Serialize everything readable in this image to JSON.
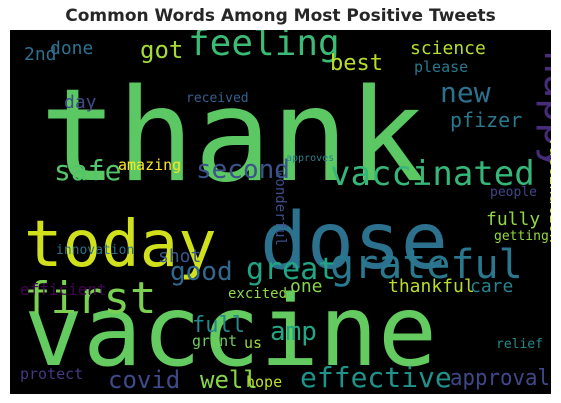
{
  "title": "Common Words Among Most Positive Tweets",
  "words": [
    {
      "text": "thank",
      "color": "#5cc863"
    },
    {
      "text": "vaccine",
      "color": "#63cb5f"
    },
    {
      "text": "dose",
      "color": "#2c728e"
    },
    {
      "text": "today",
      "color": "#d0e11c"
    },
    {
      "text": "first",
      "color": "#7ad151"
    },
    {
      "text": "grateful",
      "color": "#2a788e"
    },
    {
      "text": "feeling",
      "color": "#3bbb75"
    },
    {
      "text": "vaccinated",
      "color": "#35b779"
    },
    {
      "text": "happy",
      "color": "#472c7a"
    },
    {
      "text": "great",
      "color": "#21a585"
    },
    {
      "text": "effective",
      "color": "#20928c"
    },
    {
      "text": "second",
      "color": "#3b528b"
    },
    {
      "text": "safe",
      "color": "#52c569"
    },
    {
      "text": "good",
      "color": "#31688e"
    },
    {
      "text": "covid",
      "color": "#3e4a89"
    },
    {
      "text": "approval",
      "color": "#3f4889"
    },
    {
      "text": "well",
      "color": "#86d549"
    },
    {
      "text": "got",
      "color": "#a5db36"
    },
    {
      "text": "new",
      "color": "#2c728e"
    },
    {
      "text": "thankful",
      "color": "#b8de29"
    },
    {
      "text": "amp",
      "color": "#22a884"
    },
    {
      "text": "full",
      "color": "#24868e"
    },
    {
      "text": "vaccination",
      "color": "#bddf26"
    },
    {
      "text": "science",
      "color": "#b5de2b"
    },
    {
      "text": "best",
      "color": "#b8de29"
    },
    {
      "text": "pfizer",
      "color": "#2a788e"
    },
    {
      "text": "shot",
      "color": "#38588c"
    },
    {
      "text": "care",
      "color": "#26828e"
    },
    {
      "text": "fully",
      "color": "#8fd744"
    },
    {
      "text": "done",
      "color": "#2c728e"
    },
    {
      "text": "one",
      "color": "#86d549"
    },
    {
      "text": "day",
      "color": "#3e4a89"
    },
    {
      "text": "amazing",
      "color": "#fde725"
    },
    {
      "text": "please",
      "color": "#2a788e"
    },
    {
      "text": "protect",
      "color": "#443983"
    },
    {
      "text": "hope",
      "color": "#bddf26"
    },
    {
      "text": "grant",
      "color": "#6ccd5a"
    },
    {
      "text": "excited",
      "color": "#8fd744"
    },
    {
      "text": "us",
      "color": "#9fda3a"
    },
    {
      "text": "2nd",
      "color": "#2e6e8e"
    },
    {
      "text": "innovation",
      "color": "#2c728e"
    },
    {
      "text": "efficient",
      "color": "#440154"
    },
    {
      "text": "received",
      "color": "#35608d"
    },
    {
      "text": "wonderful",
      "color": "#3d4e8a"
    },
    {
      "text": "people",
      "color": "#3f4788"
    },
    {
      "text": "getting",
      "color": "#95d840"
    },
    {
      "text": "relief",
      "color": "#23888e"
    },
    {
      "text": "approves",
      "color": "#26828e"
    }
  ]
}
